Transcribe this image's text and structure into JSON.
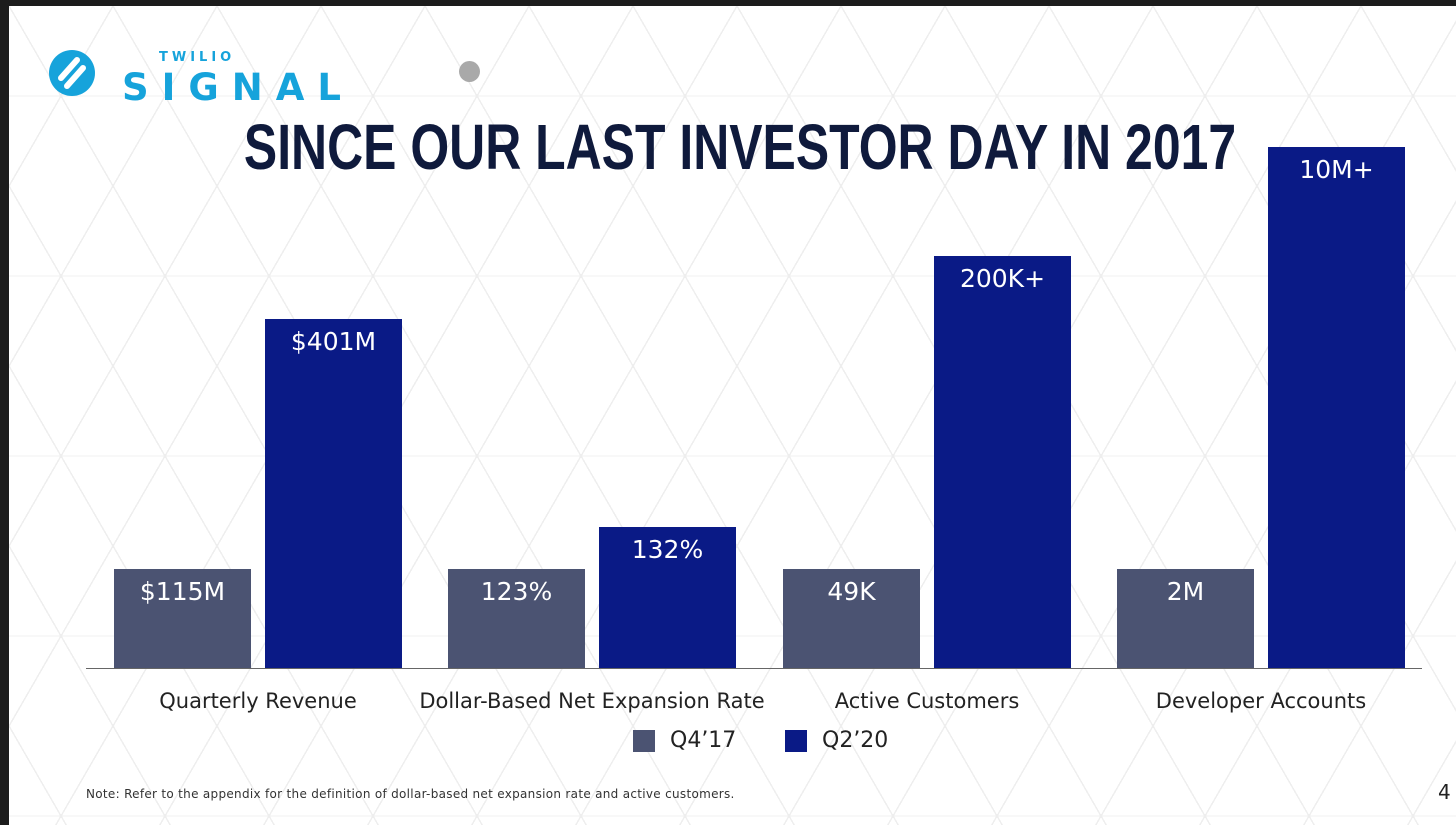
{
  "brand": {
    "small": "TWILIO",
    "big": "SIGNAL",
    "color": "#16a3db",
    "icon": "twilio-signal-logo-icon"
  },
  "slide": {
    "title": "SINCE OUR LAST INVESTOR DAY IN 2017",
    "note": "Note: Refer to the appendix for the definition of dollar-based net expansion rate and active customers.",
    "page_number": "4"
  },
  "colors": {
    "q4_17": "#4b5372",
    "q2_20": "#0a1a86",
    "title": "#0f1a3c"
  },
  "chart_data": {
    "type": "bar",
    "title": "SINCE OUR LAST INVESTOR DAY IN 2017",
    "categories": [
      "Quarterly Revenue",
      "Dollar-Based Net Expansion Rate",
      "Active Customers",
      "Developer Accounts"
    ],
    "series": [
      {
        "name": "Q4’17",
        "color": "#4b5372",
        "labels": [
          "$115M",
          "123%",
          "49K",
          "2M"
        ],
        "heights": [
          0.19,
          0.19,
          0.19,
          0.19
        ]
      },
      {
        "name": "Q2’20",
        "color": "#0a1a86",
        "labels": [
          "$401M",
          "132%",
          "200K+",
          "10M+"
        ],
        "heights": [
          0.67,
          0.27,
          0.79,
          1.0
        ]
      }
    ],
    "legend": "bottom-center",
    "grid": false,
    "note": "Bar heights are illustrative per metric; values shown as data labels."
  }
}
